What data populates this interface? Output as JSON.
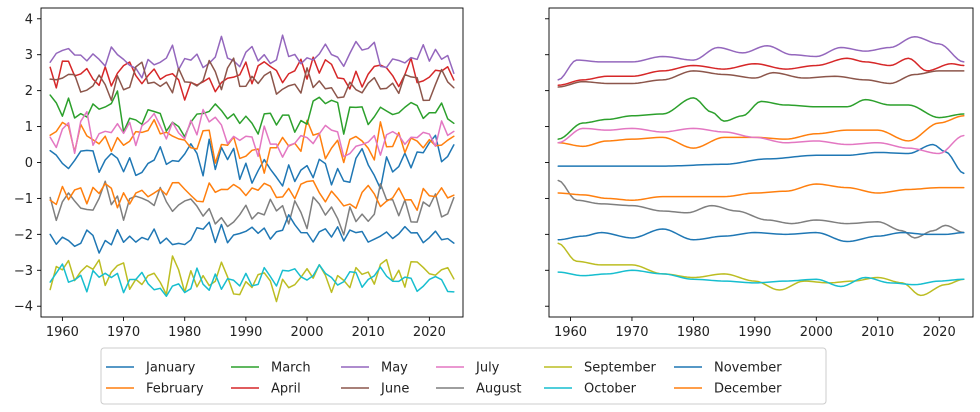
{
  "chart_data": [
    {
      "type": "line",
      "variant": "raw annual values",
      "x_start": 1958,
      "x_end": 2024,
      "xlim": [
        1956.5,
        2025.5
      ],
      "ylim": [
        -4.3,
        4.3
      ],
      "xticks": [
        "1960",
        "1970",
        "1980",
        "1990",
        "2000",
        "2010",
        "2020"
      ],
      "yticks": [
        "-4",
        "-3",
        "-2",
        "-1",
        "0",
        "1",
        "2",
        "3",
        "4"
      ],
      "grid": false,
      "title": "",
      "xlabel": "",
      "ylabel": "",
      "series_note": "approximate level and variability of each month's series (noisy yearly values)",
      "series": [
        {
          "name": "January",
          "color": "#1f77b4",
          "level": 0.0,
          "noise": 0.26
        },
        {
          "name": "February",
          "color": "#ff7f0e",
          "level": 0.55,
          "noise": 0.28
        },
        {
          "name": "March",
          "color": "#2ca02c",
          "level": 1.35,
          "noise": 0.28
        },
        {
          "name": "April",
          "color": "#d62728",
          "level": 2.45,
          "noise": 0.3
        },
        {
          "name": "May",
          "color": "#9467bd",
          "level": 2.95,
          "noise": 0.25
        },
        {
          "name": "June",
          "color": "#8c564b",
          "level": 2.25,
          "noise": 0.22
        },
        {
          "name": "July",
          "color": "#e377c2",
          "level": 0.75,
          "noise": 0.25
        },
        {
          "name": "August",
          "color": "#7f7f7f",
          "level": -1.35,
          "noise": 0.28
        },
        {
          "name": "September",
          "color": "#bcbd22",
          "level": -3.2,
          "noise": 0.25
        },
        {
          "name": "October",
          "color": "#17becf",
          "level": -3.25,
          "noise": 0.18
        },
        {
          "name": "November",
          "color": "#1f77b4",
          "level": -2.0,
          "noise": 0.16
        },
        {
          "name": "December",
          "color": "#ff7f0e",
          "level": -0.85,
          "noise": 0.16
        }
      ]
    },
    {
      "type": "line",
      "variant": "smoothed",
      "x_start": 1958,
      "x_end": 2024,
      "xlim": [
        1956.5,
        2025.5
      ],
      "ylim": [
        -4.3,
        4.3
      ],
      "xticks": [
        "1960",
        "1970",
        "1980",
        "1990",
        "2000",
        "2010",
        "2020"
      ],
      "yticks": [],
      "shared_y": true,
      "grid": false,
      "title": "",
      "xlabel": "",
      "ylabel": "",
      "series": [
        {
          "name": "January",
          "color": "#1f77b4",
          "keyframes": [
            [
              1958,
              -0.1
            ],
            [
              1965,
              -0.1
            ],
            [
              1975,
              -0.1
            ],
            [
              1985,
              -0.05
            ],
            [
              1992,
              0.1
            ],
            [
              2000,
              0.2
            ],
            [
              2005,
              0.2
            ],
            [
              2010,
              0.28
            ],
            [
              2015,
              0.25
            ],
            [
              2019,
              0.5
            ],
            [
              2021,
              0.3
            ],
            [
              2024,
              -0.3
            ]
          ]
        },
        {
          "name": "February",
          "color": "#ff7f0e",
          "keyframes": [
            [
              1958,
              0.55
            ],
            [
              1962,
              0.45
            ],
            [
              1966,
              0.6
            ],
            [
              1970,
              0.65
            ],
            [
              1975,
              0.7
            ],
            [
              1980,
              0.4
            ],
            [
              1985,
              0.7
            ],
            [
              1990,
              0.7
            ],
            [
              1995,
              0.65
            ],
            [
              2000,
              0.8
            ],
            [
              2005,
              0.9
            ],
            [
              2010,
              0.9
            ],
            [
              2015,
              0.6
            ],
            [
              2020,
              1.1
            ],
            [
              2024,
              1.3
            ]
          ]
        },
        {
          "name": "March",
          "color": "#2ca02c",
          "keyframes": [
            [
              1958,
              0.65
            ],
            [
              1962,
              1.1
            ],
            [
              1966,
              1.2
            ],
            [
              1970,
              1.3
            ],
            [
              1975,
              1.35
            ],
            [
              1980,
              1.8
            ],
            [
              1983,
              1.4
            ],
            [
              1985,
              1.15
            ],
            [
              1988,
              1.3
            ],
            [
              1991,
              1.7
            ],
            [
              1995,
              1.6
            ],
            [
              2000,
              1.55
            ],
            [
              2005,
              1.55
            ],
            [
              2008,
              1.75
            ],
            [
              2012,
              1.6
            ],
            [
              2015,
              1.6
            ],
            [
              2020,
              1.25
            ],
            [
              2024,
              1.35
            ]
          ]
        },
        {
          "name": "April",
          "color": "#d62728",
          "keyframes": [
            [
              1958,
              2.15
            ],
            [
              1962,
              2.3
            ],
            [
              1966,
              2.4
            ],
            [
              1970,
              2.4
            ],
            [
              1975,
              2.55
            ],
            [
              1980,
              2.7
            ],
            [
              1985,
              2.6
            ],
            [
              1990,
              2.75
            ],
            [
              1995,
              2.6
            ],
            [
              2000,
              2.7
            ],
            [
              2005,
              2.9
            ],
            [
              2008,
              2.8
            ],
            [
              2012,
              2.7
            ],
            [
              2015,
              2.9
            ],
            [
              2018,
              2.55
            ],
            [
              2022,
              2.75
            ],
            [
              2024,
              2.7
            ]
          ]
        },
        {
          "name": "May",
          "color": "#9467bd",
          "keyframes": [
            [
              1958,
              2.3
            ],
            [
              1961,
              2.85
            ],
            [
              1965,
              2.8
            ],
            [
              1970,
              2.8
            ],
            [
              1975,
              2.95
            ],
            [
              1980,
              2.85
            ],
            [
              1984,
              3.2
            ],
            [
              1988,
              3.05
            ],
            [
              1992,
              3.25
            ],
            [
              1996,
              3.0
            ],
            [
              2000,
              2.95
            ],
            [
              2004,
              3.2
            ],
            [
              2008,
              3.1
            ],
            [
              2012,
              3.2
            ],
            [
              2016,
              3.5
            ],
            [
              2020,
              3.3
            ],
            [
              2024,
              2.8
            ]
          ]
        },
        {
          "name": "June",
          "color": "#8c564b",
          "keyframes": [
            [
              1958,
              2.1
            ],
            [
              1962,
              2.25
            ],
            [
              1966,
              2.2
            ],
            [
              1970,
              2.2
            ],
            [
              1975,
              2.3
            ],
            [
              1980,
              2.55
            ],
            [
              1985,
              2.45
            ],
            [
              1990,
              2.35
            ],
            [
              1993,
              2.5
            ],
            [
              1998,
              2.35
            ],
            [
              2003,
              2.4
            ],
            [
              2008,
              2.3
            ],
            [
              2012,
              2.2
            ],
            [
              2016,
              2.45
            ],
            [
              2020,
              2.55
            ],
            [
              2024,
              2.55
            ]
          ]
        },
        {
          "name": "July",
          "color": "#e377c2",
          "keyframes": [
            [
              1958,
              0.55
            ],
            [
              1962,
              0.95
            ],
            [
              1966,
              0.9
            ],
            [
              1970,
              0.95
            ],
            [
              1975,
              0.85
            ],
            [
              1980,
              0.95
            ],
            [
              1985,
              0.85
            ],
            [
              1990,
              0.7
            ],
            [
              1995,
              0.55
            ],
            [
              2000,
              0.6
            ],
            [
              2005,
              0.5
            ],
            [
              2010,
              0.55
            ],
            [
              2015,
              0.4
            ],
            [
              2020,
              0.25
            ],
            [
              2024,
              0.75
            ]
          ]
        },
        {
          "name": "August",
          "color": "#7f7f7f",
          "keyframes": [
            [
              1958,
              -0.5
            ],
            [
              1961,
              -1.05
            ],
            [
              1965,
              -1.15
            ],
            [
              1970,
              -1.2
            ],
            [
              1975,
              -1.35
            ],
            [
              1979,
              -1.4
            ],
            [
              1983,
              -1.2
            ],
            [
              1987,
              -1.35
            ],
            [
              1992,
              -1.6
            ],
            [
              1996,
              -1.7
            ],
            [
              2000,
              -1.6
            ],
            [
              2005,
              -1.7
            ],
            [
              2010,
              -1.65
            ],
            [
              2014,
              -1.9
            ],
            [
              2016,
              -2.1
            ],
            [
              2019,
              -1.9
            ],
            [
              2021,
              -1.75
            ],
            [
              2024,
              -1.95
            ]
          ]
        },
        {
          "name": "September",
          "color": "#bcbd22",
          "keyframes": [
            [
              1958,
              -2.25
            ],
            [
              1961,
              -2.75
            ],
            [
              1965,
              -2.85
            ],
            [
              1970,
              -2.85
            ],
            [
              1975,
              -3.1
            ],
            [
              1980,
              -3.2
            ],
            [
              1985,
              -3.1
            ],
            [
              1990,
              -3.3
            ],
            [
              1994,
              -3.55
            ],
            [
              1998,
              -3.3
            ],
            [
              2002,
              -3.35
            ],
            [
              2006,
              -3.3
            ],
            [
              2010,
              -3.2
            ],
            [
              2014,
              -3.35
            ],
            [
              2017,
              -3.7
            ],
            [
              2021,
              -3.4
            ],
            [
              2024,
              -3.25
            ]
          ]
        },
        {
          "name": "October",
          "color": "#17becf",
          "keyframes": [
            [
              1958,
              -3.05
            ],
            [
              1962,
              -3.15
            ],
            [
              1966,
              -3.1
            ],
            [
              1970,
              -3.0
            ],
            [
              1975,
              -3.1
            ],
            [
              1980,
              -3.25
            ],
            [
              1985,
              -3.3
            ],
            [
              1990,
              -3.35
            ],
            [
              1995,
              -3.3
            ],
            [
              2000,
              -3.25
            ],
            [
              2004,
              -3.45
            ],
            [
              2008,
              -3.2
            ],
            [
              2012,
              -3.35
            ],
            [
              2016,
              -3.4
            ],
            [
              2020,
              -3.3
            ],
            [
              2024,
              -3.25
            ]
          ]
        },
        {
          "name": "November",
          "color": "#1f77b4",
          "keyframes": [
            [
              1958,
              -2.15
            ],
            [
              1962,
              -2.05
            ],
            [
              1965,
              -1.95
            ],
            [
              1970,
              -2.1
            ],
            [
              1975,
              -1.85
            ],
            [
              1980,
              -2.15
            ],
            [
              1985,
              -2.05
            ],
            [
              1990,
              -1.95
            ],
            [
              1995,
              -2.0
            ],
            [
              2000,
              -1.95
            ],
            [
              2005,
              -2.2
            ],
            [
              2010,
              -2.05
            ],
            [
              2014,
              -1.95
            ],
            [
              2018,
              -2.0
            ],
            [
              2021,
              -2.0
            ],
            [
              2024,
              -1.95
            ]
          ]
        },
        {
          "name": "December",
          "color": "#ff7f0e",
          "keyframes": [
            [
              1958,
              -0.85
            ],
            [
              1962,
              -0.9
            ],
            [
              1966,
              -1.0
            ],
            [
              1970,
              -1.05
            ],
            [
              1975,
              -0.95
            ],
            [
              1980,
              -0.95
            ],
            [
              1985,
              -0.95
            ],
            [
              1990,
              -0.85
            ],
            [
              1995,
              -0.8
            ],
            [
              2000,
              -0.6
            ],
            [
              2005,
              -0.7
            ],
            [
              2010,
              -0.85
            ],
            [
              2015,
              -0.75
            ],
            [
              2020,
              -0.7
            ],
            [
              2024,
              -0.7
            ]
          ]
        }
      ]
    }
  ],
  "legend": {
    "placement": "bottom-center",
    "columns": 6,
    "entries": [
      "January",
      "February",
      "March",
      "April",
      "May",
      "June",
      "July",
      "August",
      "September",
      "October",
      "November",
      "December"
    ]
  }
}
